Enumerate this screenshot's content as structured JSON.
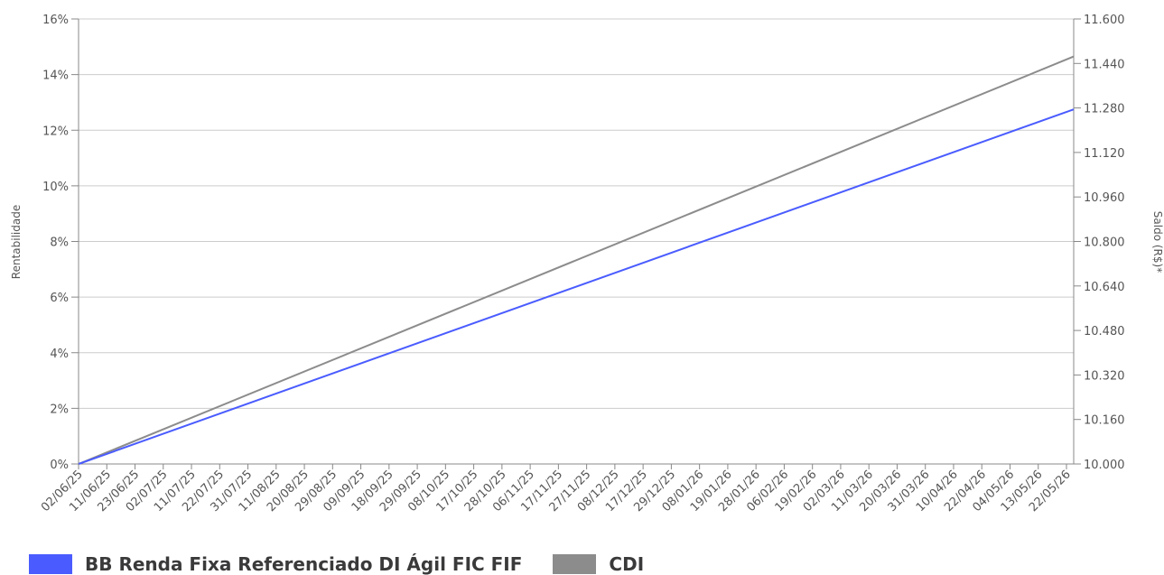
{
  "chart_data": {
    "type": "line",
    "ylabel_left": "Rentabilidade",
    "ylabel_right": "Saldo (R$)*",
    "y_left_ticks": [
      "0%",
      "2%",
      "4%",
      "6%",
      "8%",
      "10%",
      "12%",
      "14%",
      "16%"
    ],
    "y_left_range": [
      0,
      16
    ],
    "y_right_ticks": [
      "10.000",
      "10.160",
      "10.320",
      "10.480",
      "10.640",
      "10.800",
      "10.960",
      "11.120",
      "11.280",
      "11.440",
      "11.600"
    ],
    "y_right_range": [
      10000,
      11600
    ],
    "x_tick_labels": [
      "02/06/25",
      "11/06/25",
      "23/06/25",
      "02/07/25",
      "11/07/25",
      "22/07/25",
      "31/07/25",
      "11/08/25",
      "20/08/25",
      "29/08/25",
      "09/09/25",
      "18/09/25",
      "29/09/25",
      "08/10/25",
      "17/10/25",
      "28/10/25",
      "06/11/25",
      "17/11/25",
      "27/11/25",
      "08/12/25",
      "17/12/25",
      "29/12/25",
      "08/01/26",
      "19/01/26",
      "28/01/26",
      "06/02/26",
      "19/02/26",
      "02/03/26",
      "11/03/26",
      "20/03/26",
      "31/03/26",
      "10/04/26",
      "22/04/26",
      "04/05/26",
      "13/05/26",
      "22/05/26"
    ],
    "x": [
      "02/06/25",
      "22/05/26"
    ],
    "series": [
      {
        "name": "BB Renda Fixa Referenciado DI Ágil FIC FIF",
        "color": "#4a5cff",
        "values": [
          0,
          12.75
        ]
      },
      {
        "name": "CDI",
        "color": "#8c8c8c",
        "values": [
          0,
          14.65
        ]
      }
    ],
    "grid": true,
    "legend_position": "bottom-left"
  }
}
